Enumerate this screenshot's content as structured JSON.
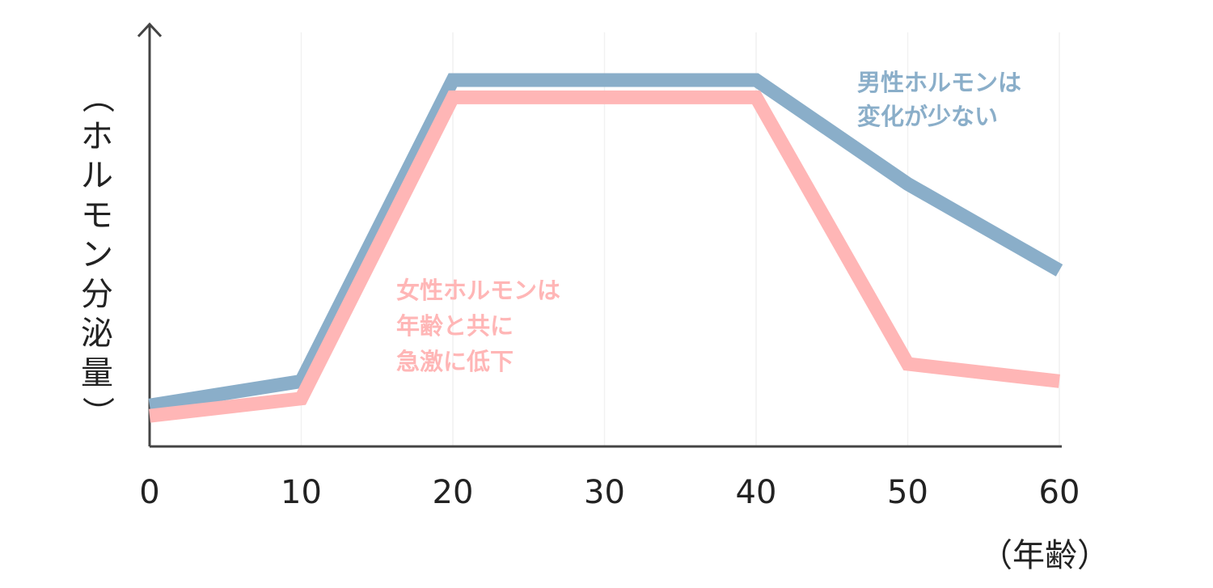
{
  "chart_data": {
    "type": "line",
    "ylabel": "（ホルモン分泌量）",
    "xlabel": "（年齢）",
    "xlim": [
      0,
      60
    ],
    "ylim": [
      0,
      100
    ],
    "grid": "vertical",
    "x": [
      0,
      10,
      20,
      30,
      40,
      50,
      60
    ],
    "x_tick_labels": [
      "0",
      "10",
      "20",
      "30",
      "40",
      "50",
      "60"
    ],
    "series": [
      {
        "key": "male",
        "color": "#8aaec9",
        "points": [
          [
            0,
            6
          ],
          [
            10,
            13
          ],
          [
            20,
            100
          ],
          [
            40,
            100
          ],
          [
            50,
            70
          ],
          [
            60,
            45
          ]
        ]
      },
      {
        "key": "female",
        "color": "#ffb6b6",
        "points": [
          [
            0,
            3
          ],
          [
            10,
            8
          ],
          [
            20,
            95
          ],
          [
            40,
            95
          ],
          [
            50,
            18
          ],
          [
            60,
            13
          ]
        ]
      }
    ],
    "annotations": [
      {
        "key": "male",
        "color": "#8aaec9",
        "lines": [
          "男性ホルモンは",
          "変化が少ない"
        ]
      },
      {
        "key": "female",
        "color": "#ffb6b6",
        "lines": [
          "女性ホルモンは",
          "年齢と共に",
          "急激に低下"
        ]
      }
    ]
  }
}
